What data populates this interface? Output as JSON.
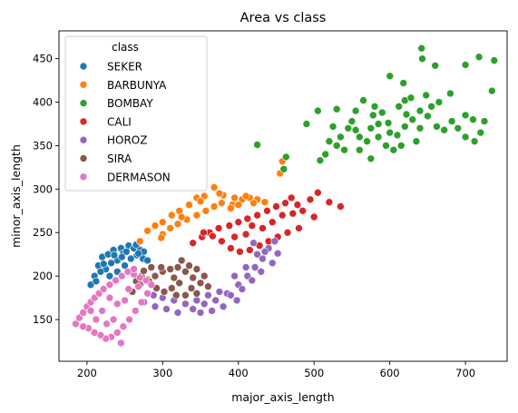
{
  "chart_data": {
    "type": "scatter",
    "title": "Area vs class",
    "xlabel": "major_axis_length",
    "ylabel": "minor_axis_length",
    "xlim": [
      163,
      755
    ],
    "ylim": [
      102,
      482
    ],
    "xticks": [
      200,
      300,
      400,
      500,
      600,
      700
    ],
    "yticks": [
      150,
      200,
      250,
      300,
      350,
      400,
      450
    ],
    "grid": false,
    "legend": {
      "title": "class",
      "placement": "top-left"
    },
    "series": [
      {
        "name": "SEKER",
        "color": "#1f77b4",
        "points": [
          [
            205,
            190
          ],
          [
            210,
            200
          ],
          [
            215,
            212
          ],
          [
            220,
            222
          ],
          [
            228,
            225
          ],
          [
            235,
            230
          ],
          [
            245,
            232
          ],
          [
            255,
            235
          ],
          [
            262,
            232
          ],
          [
            270,
            230
          ],
          [
            275,
            228
          ],
          [
            265,
            236
          ],
          [
            248,
            226
          ],
          [
            240,
            218
          ],
          [
            232,
            215
          ],
          [
            225,
            208
          ],
          [
            218,
            205
          ],
          [
            230,
            200
          ],
          [
            240,
            205
          ],
          [
            250,
            212
          ],
          [
            258,
            220
          ],
          [
            266,
            224
          ],
          [
            274,
            220
          ],
          [
            280,
            218
          ],
          [
            212,
            194
          ],
          [
            222,
            214
          ],
          [
            236,
            224
          ],
          [
            252,
            228
          ],
          [
            268,
            226
          ],
          [
            246,
            222
          ]
        ]
      },
      {
        "name": "BARBUNYA",
        "color": "#ff7f0e",
        "points": [
          [
            270,
            240
          ],
          [
            280,
            252
          ],
          [
            290,
            258
          ],
          [
            300,
            262
          ],
          [
            312,
            270
          ],
          [
            322,
            275
          ],
          [
            335,
            282
          ],
          [
            345,
            290
          ],
          [
            355,
            292
          ],
          [
            368,
            302
          ],
          [
            380,
            293
          ],
          [
            392,
            282
          ],
          [
            405,
            288
          ],
          [
            415,
            290
          ],
          [
            425,
            288
          ],
          [
            435,
            285
          ],
          [
            455,
            318
          ],
          [
            458,
            332
          ],
          [
            420,
            284
          ],
          [
            300,
            248
          ],
          [
            310,
            255
          ],
          [
            320,
            260
          ],
          [
            332,
            265
          ],
          [
            345,
            270
          ],
          [
            357,
            275
          ],
          [
            368,
            280
          ],
          [
            378,
            284
          ],
          [
            390,
            278
          ],
          [
            400,
            282
          ],
          [
            298,
            244
          ],
          [
            325,
            268
          ],
          [
            350,
            286
          ],
          [
            375,
            295
          ],
          [
            395,
            290
          ],
          [
            410,
            292
          ]
        ]
      },
      {
        "name": "BOMBAY",
        "color": "#2ca02c",
        "points": [
          [
            425,
            351
          ],
          [
            460,
            323
          ],
          [
            463,
            337
          ],
          [
            490,
            375
          ],
          [
            505,
            390
          ],
          [
            530,
            392
          ],
          [
            555,
            368
          ],
          [
            578,
            385
          ],
          [
            620,
            402
          ],
          [
            600,
            430
          ],
          [
            618,
            422
          ],
          [
            642,
            462
          ],
          [
            643,
            450
          ],
          [
            660,
            442
          ],
          [
            700,
            443
          ],
          [
            718,
            452
          ],
          [
            738,
            448
          ],
          [
            735,
            413
          ],
          [
            680,
            410
          ],
          [
            655,
            395
          ],
          [
            700,
            385
          ],
          [
            710,
            380
          ],
          [
            725,
            378
          ],
          [
            635,
            355
          ],
          [
            575,
            335
          ],
          [
            560,
            360
          ],
          [
            540,
            345
          ],
          [
            520,
            355
          ],
          [
            515,
            340
          ],
          [
            508,
            333
          ],
          [
            525,
            372
          ],
          [
            550,
            378
          ],
          [
            565,
            402
          ],
          [
            580,
            395
          ],
          [
            590,
            388
          ],
          [
            598,
            376
          ],
          [
            610,
            362
          ],
          [
            620,
            372
          ],
          [
            630,
            380
          ],
          [
            640,
            390
          ],
          [
            650,
            384
          ],
          [
            662,
            372
          ],
          [
            672,
            368
          ],
          [
            682,
            378
          ],
          [
            690,
            370
          ],
          [
            700,
            360
          ],
          [
            712,
            355
          ],
          [
            720,
            365
          ],
          [
            585,
            360
          ],
          [
            595,
            350
          ],
          [
            605,
            345
          ],
          [
            570,
            355
          ],
          [
            545,
            370
          ],
          [
            535,
            360
          ],
          [
            612,
            395
          ],
          [
            628,
            405
          ],
          [
            648,
            408
          ],
          [
            665,
            400
          ],
          [
            560,
            345
          ],
          [
            585,
            375
          ],
          [
            600,
            365
          ],
          [
            615,
            350
          ],
          [
            640,
            370
          ],
          [
            530,
            350
          ],
          [
            555,
            390
          ],
          [
            575,
            370
          ],
          [
            622,
            386
          ]
        ]
      },
      {
        "name": "CALI",
        "color": "#d62728",
        "points": [
          [
            340,
            238
          ],
          [
            352,
            245
          ],
          [
            362,
            250
          ],
          [
            374,
            255
          ],
          [
            388,
            258
          ],
          [
            400,
            262
          ],
          [
            412,
            266
          ],
          [
            425,
            270
          ],
          [
            438,
            275
          ],
          [
            450,
            280
          ],
          [
            462,
            284
          ],
          [
            470,
            290
          ],
          [
            478,
            282
          ],
          [
            485,
            275
          ],
          [
            495,
            288
          ],
          [
            505,
            296
          ],
          [
            520,
            285
          ],
          [
            535,
            280
          ],
          [
            500,
            268
          ],
          [
            480,
            255
          ],
          [
            465,
            250
          ],
          [
            452,
            245
          ],
          [
            440,
            240
          ],
          [
            428,
            235
          ],
          [
            415,
            230
          ],
          [
            402,
            228
          ],
          [
            390,
            232
          ],
          [
            378,
            240
          ],
          [
            366,
            246
          ],
          [
            354,
            250
          ],
          [
            445,
            262
          ],
          [
            458,
            270
          ],
          [
            472,
            272
          ],
          [
            410,
            248
          ],
          [
            395,
            245
          ],
          [
            432,
            255
          ],
          [
            418,
            258
          ]
        ]
      },
      {
        "name": "HOROZ",
        "color": "#9467bd",
        "points": [
          [
            275,
            170
          ],
          [
            290,
            165
          ],
          [
            305,
            162
          ],
          [
            320,
            158
          ],
          [
            340,
            162
          ],
          [
            355,
            168
          ],
          [
            370,
            172
          ],
          [
            385,
            180
          ],
          [
            400,
            190
          ],
          [
            412,
            200
          ],
          [
            422,
            210
          ],
          [
            432,
            220
          ],
          [
            440,
            232
          ],
          [
            448,
            240
          ],
          [
            452,
            226
          ],
          [
            445,
            215
          ],
          [
            430,
            205
          ],
          [
            418,
            195
          ],
          [
            405,
            185
          ],
          [
            390,
            178
          ],
          [
            375,
            182
          ],
          [
            360,
            178
          ],
          [
            345,
            172
          ],
          [
            330,
            168
          ],
          [
            315,
            172
          ],
          [
            300,
            175
          ],
          [
            288,
            178
          ],
          [
            410,
            210
          ],
          [
            425,
            225
          ],
          [
            398,
            172
          ],
          [
            380,
            165
          ],
          [
            365,
            160
          ],
          [
            350,
            158
          ],
          [
            395,
            200
          ],
          [
            435,
            228
          ],
          [
            420,
            238
          ]
        ]
      },
      {
        "name": "SIRA",
        "color": "#8c564b",
        "points": [
          [
            260,
            182
          ],
          [
            270,
            190
          ],
          [
            280,
            196
          ],
          [
            290,
            200
          ],
          [
            300,
            205
          ],
          [
            310,
            208
          ],
          [
            320,
            210
          ],
          [
            330,
            205
          ],
          [
            340,
            198
          ],
          [
            350,
            192
          ],
          [
            360,
            188
          ],
          [
            345,
            208
          ],
          [
            335,
            212
          ],
          [
            322,
            192
          ],
          [
            312,
            186
          ],
          [
            302,
            182
          ],
          [
            292,
            186
          ],
          [
            282,
            194
          ],
          [
            272,
            200
          ],
          [
            265,
            194
          ],
          [
            355,
            200
          ],
          [
            345,
            180
          ],
          [
            330,
            178
          ],
          [
            315,
            198
          ],
          [
            298,
            210
          ],
          [
            285,
            210
          ],
          [
            275,
            206
          ],
          [
            325,
            218
          ],
          [
            338,
            186
          ],
          [
            318,
            178
          ]
        ]
      },
      {
        "name": "DERMASON",
        "color": "#e377c2",
        "points": [
          [
            185,
            145
          ],
          [
            190,
            152
          ],
          [
            195,
            158
          ],
          [
            200,
            165
          ],
          [
            205,
            170
          ],
          [
            210,
            175
          ],
          [
            216,
            180
          ],
          [
            222,
            185
          ],
          [
            230,
            190
          ],
          [
            238,
            195
          ],
          [
            246,
            200
          ],
          [
            254,
            205
          ],
          [
            262,
            202
          ],
          [
            270,
            198
          ],
          [
            278,
            195
          ],
          [
            285,
            190
          ],
          [
            280,
            180
          ],
          [
            272,
            170
          ],
          [
            264,
            160
          ],
          [
            256,
            150
          ],
          [
            248,
            142
          ],
          [
            240,
            135
          ],
          [
            232,
            130
          ],
          [
            225,
            128
          ],
          [
            218,
            132
          ],
          [
            210,
            135
          ],
          [
            202,
            140
          ],
          [
            195,
            142
          ],
          [
            245,
            123
          ],
          [
            262,
            208
          ],
          [
            230,
            175
          ],
          [
            240,
            168
          ],
          [
            250,
            172
          ],
          [
            220,
            160
          ],
          [
            212,
            150
          ],
          [
            235,
            150
          ],
          [
            255,
            185
          ],
          [
            268,
            188
          ],
          [
            226,
            145
          ],
          [
            205,
            160
          ]
        ]
      }
    ]
  }
}
